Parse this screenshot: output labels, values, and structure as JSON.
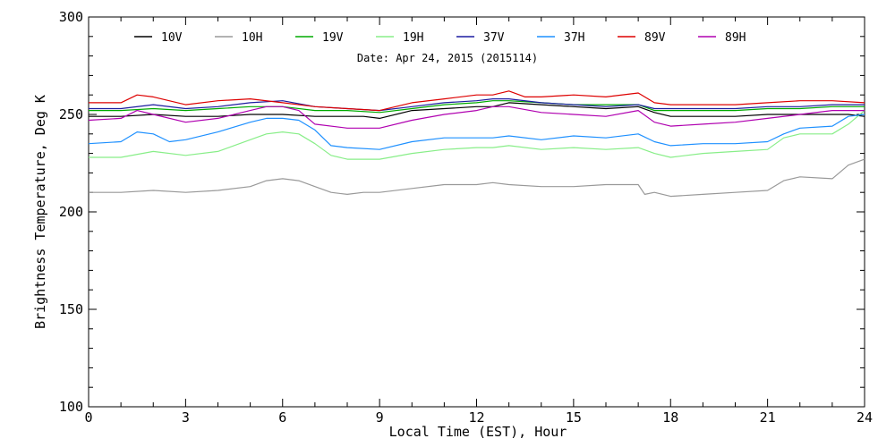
{
  "chart_data": {
    "type": "line",
    "title": "",
    "subtitle": "Date: Apr 24, 2015 (2015114)",
    "xlabel": "Local Time (EST), Hour",
    "ylabel": "Brightness Temperature, Deg K",
    "xlim": [
      0,
      24
    ],
    "ylim": [
      100,
      300
    ],
    "xticks": [
      "0",
      "3",
      "6",
      "9",
      "12",
      "15",
      "18",
      "21",
      "24"
    ],
    "yticks": [
      "100",
      "150",
      "200",
      "250",
      "300"
    ],
    "grid": false,
    "legend_position": "top",
    "series": [
      {
        "name": "10V",
        "color": "#000000",
        "x": [
          0,
          1,
          2,
          3,
          4,
          5,
          6,
          7,
          8,
          8.5,
          9,
          10,
          11,
          12,
          12.5,
          13,
          14,
          15,
          16,
          17,
          17.5,
          18,
          19,
          20,
          21,
          22,
          23,
          23.5,
          24
        ],
        "y": [
          249,
          249,
          250,
          249,
          249,
          250,
          250,
          249,
          249,
          249,
          248,
          252,
          253,
          254,
          254,
          256,
          255,
          254,
          253,
          254,
          251,
          249,
          249,
          249,
          250,
          250,
          250,
          250,
          249
        ]
      },
      {
        "name": "10H",
        "color": "#999999",
        "x": [
          0,
          1,
          2,
          3,
          4,
          5,
          5.5,
          6,
          6.5,
          7,
          7.5,
          8,
          8.5,
          9,
          10,
          11,
          12,
          12.5,
          13,
          14,
          15,
          16,
          17,
          17.2,
          17.5,
          18,
          19,
          20,
          21,
          21.5,
          22,
          23,
          23.5,
          24
        ],
        "y": [
          210,
          210,
          211,
          210,
          211,
          213,
          216,
          217,
          216,
          213,
          210,
          209,
          210,
          210,
          212,
          214,
          214,
          215,
          214,
          213,
          213,
          214,
          214,
          209,
          210,
          208,
          209,
          210,
          211,
          216,
          218,
          217,
          224,
          227
        ]
      },
      {
        "name": "19V",
        "color": "#00aa00",
        "x": [
          0,
          1,
          2,
          3,
          4,
          5,
          6,
          7,
          8,
          9,
          10,
          11,
          12,
          12.5,
          13,
          14,
          15,
          16,
          17,
          17.5,
          18,
          19,
          20,
          21,
          22,
          23,
          24
        ],
        "y": [
          252,
          252,
          253,
          252,
          253,
          254,
          254,
          252,
          252,
          251,
          253,
          255,
          256,
          257,
          257,
          256,
          255,
          255,
          255,
          252,
          252,
          252,
          252,
          253,
          253,
          254,
          254
        ]
      },
      {
        "name": "19H",
        "color": "#88ee88",
        "x": [
          0,
          1,
          2,
          3,
          4,
          5,
          5.5,
          6,
          6.5,
          7,
          7.5,
          8,
          9,
          10,
          11,
          12,
          12.5,
          13,
          14,
          15,
          16,
          17,
          17.5,
          18,
          19,
          20,
          21,
          21.5,
          22,
          23,
          23.5,
          24
        ],
        "y": [
          228,
          228,
          231,
          229,
          231,
          237,
          240,
          241,
          240,
          235,
          229,
          227,
          227,
          230,
          232,
          233,
          233,
          234,
          232,
          233,
          232,
          233,
          230,
          228,
          230,
          231,
          232,
          238,
          240,
          240,
          245,
          252
        ]
      },
      {
        "name": "37V",
        "color": "#1c1ca0",
        "x": [
          0,
          1,
          2,
          3,
          4,
          5,
          6,
          7,
          8,
          9,
          10,
          11,
          12,
          12.5,
          13,
          14,
          15,
          16,
          17,
          17.5,
          18,
          19,
          20,
          21,
          22,
          23,
          24
        ],
        "y": [
          253,
          253,
          255,
          253,
          254,
          256,
          257,
          254,
          253,
          252,
          254,
          256,
          257,
          258,
          258,
          256,
          255,
          254,
          255,
          253,
          253,
          253,
          253,
          254,
          254,
          255,
          255
        ]
      },
      {
        "name": "37H",
        "color": "#1e90ff",
        "x": [
          0,
          1,
          1.5,
          2,
          2.5,
          3,
          4,
          5,
          5.5,
          6,
          6.5,
          7,
          7.5,
          8,
          9,
          10,
          11,
          12,
          12.5,
          13,
          14,
          15,
          16,
          17,
          17.5,
          18,
          19,
          20,
          21,
          21.5,
          22,
          23,
          23.5,
          24
        ],
        "y": [
          235,
          236,
          241,
          240,
          236,
          237,
          241,
          246,
          248,
          248,
          247,
          242,
          234,
          233,
          232,
          236,
          238,
          238,
          238,
          239,
          237,
          239,
          238,
          240,
          236,
          234,
          235,
          235,
          236,
          240,
          243,
          244,
          249,
          250
        ]
      },
      {
        "name": "89V",
        "color": "#dd0000",
        "x": [
          0,
          1,
          1.5,
          2,
          3,
          4,
          5,
          6,
          7,
          8,
          9,
          10,
          11,
          12,
          12.5,
          13,
          13.5,
          14,
          15,
          16,
          17,
          17.5,
          18,
          19,
          20,
          21,
          22,
          23,
          24
        ],
        "y": [
          256,
          256,
          260,
          259,
          255,
          257,
          258,
          256,
          254,
          253,
          252,
          256,
          258,
          260,
          260,
          262,
          259,
          259,
          260,
          259,
          261,
          256,
          255,
          255,
          255,
          256,
          257,
          257,
          256
        ]
      },
      {
        "name": "89H",
        "color": "#b000b0",
        "x": [
          0,
          1,
          1.5,
          2,
          3,
          4,
          5,
          5.5,
          6,
          6.5,
          7,
          8,
          9,
          10,
          11,
          12,
          12.5,
          13,
          14,
          15,
          16,
          17,
          17.5,
          18,
          19,
          20,
          21,
          22,
          23,
          24
        ],
        "y": [
          247,
          248,
          252,
          250,
          246,
          248,
          252,
          254,
          254,
          252,
          245,
          243,
          243,
          247,
          250,
          252,
          254,
          254,
          251,
          250,
          249,
          252,
          246,
          244,
          245,
          246,
          248,
          250,
          252,
          252
        ]
      }
    ]
  }
}
